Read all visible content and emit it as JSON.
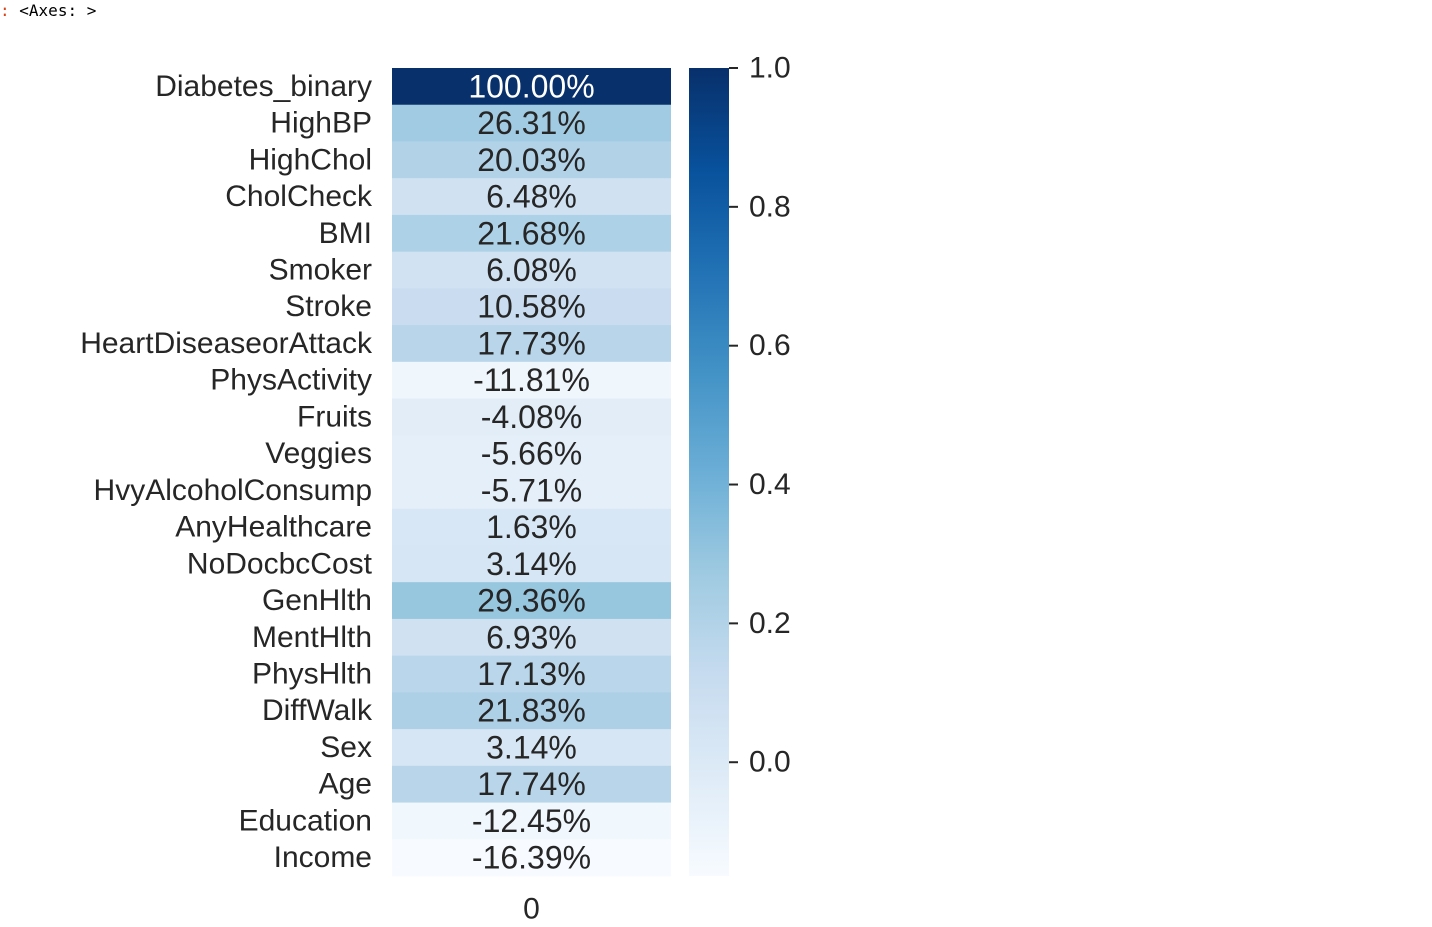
{
  "output": {
    "prompt_marker": ":",
    "text": "<Axes: >"
  },
  "chart_data": {
    "type": "heatmap",
    "title": "",
    "xlabel": "",
    "ylabel": "",
    "x_tick_labels": [
      "0"
    ],
    "rows": [
      {
        "label": "Diabetes_binary",
        "value": 1.0,
        "text": "100.00%"
      },
      {
        "label": "HighBP",
        "value": 0.2631,
        "text": "26.31%"
      },
      {
        "label": "HighChol",
        "value": 0.2003,
        "text": "20.03%"
      },
      {
        "label": "CholCheck",
        "value": 0.0648,
        "text": "6.48%"
      },
      {
        "label": "BMI",
        "value": 0.2168,
        "text": "21.68%"
      },
      {
        "label": "Smoker",
        "value": 0.0608,
        "text": "6.08%"
      },
      {
        "label": "Stroke",
        "value": 0.1058,
        "text": "10.58%"
      },
      {
        "label": "HeartDiseaseorAttack",
        "value": 0.1773,
        "text": "17.73%"
      },
      {
        "label": "PhysActivity",
        "value": -0.1181,
        "text": "-11.81%"
      },
      {
        "label": "Fruits",
        "value": -0.0408,
        "text": "-4.08%"
      },
      {
        "label": "Veggies",
        "value": -0.0566,
        "text": "-5.66%"
      },
      {
        "label": "HvyAlcoholConsump",
        "value": -0.0571,
        "text": "-5.71%"
      },
      {
        "label": "AnyHealthcare",
        "value": 0.0163,
        "text": "1.63%"
      },
      {
        "label": "NoDocbcCost",
        "value": 0.0314,
        "text": "3.14%"
      },
      {
        "label": "GenHlth",
        "value": 0.2936,
        "text": "29.36%"
      },
      {
        "label": "MentHlth",
        "value": 0.0693,
        "text": "6.93%"
      },
      {
        "label": "PhysHlth",
        "value": 0.1713,
        "text": "17.13%"
      },
      {
        "label": "DiffWalk",
        "value": 0.2183,
        "text": "21.83%"
      },
      {
        "label": "Sex",
        "value": 0.0314,
        "text": "3.14%"
      },
      {
        "label": "Age",
        "value": 0.1774,
        "text": "17.74%"
      },
      {
        "label": "Education",
        "value": -0.1245,
        "text": "-12.45%"
      },
      {
        "label": "Income",
        "value": -0.1639,
        "text": "-16.39%"
      }
    ],
    "colorbar": {
      "colormap": "Blues",
      "vmin": -0.1639,
      "vmax": 1.0,
      "ticks": [
        0.0,
        0.2,
        0.4,
        0.6,
        0.8,
        1.0
      ],
      "tick_labels": [
        "0.0",
        "0.2",
        "0.4",
        "0.6",
        "0.8",
        "1.0"
      ]
    }
  }
}
